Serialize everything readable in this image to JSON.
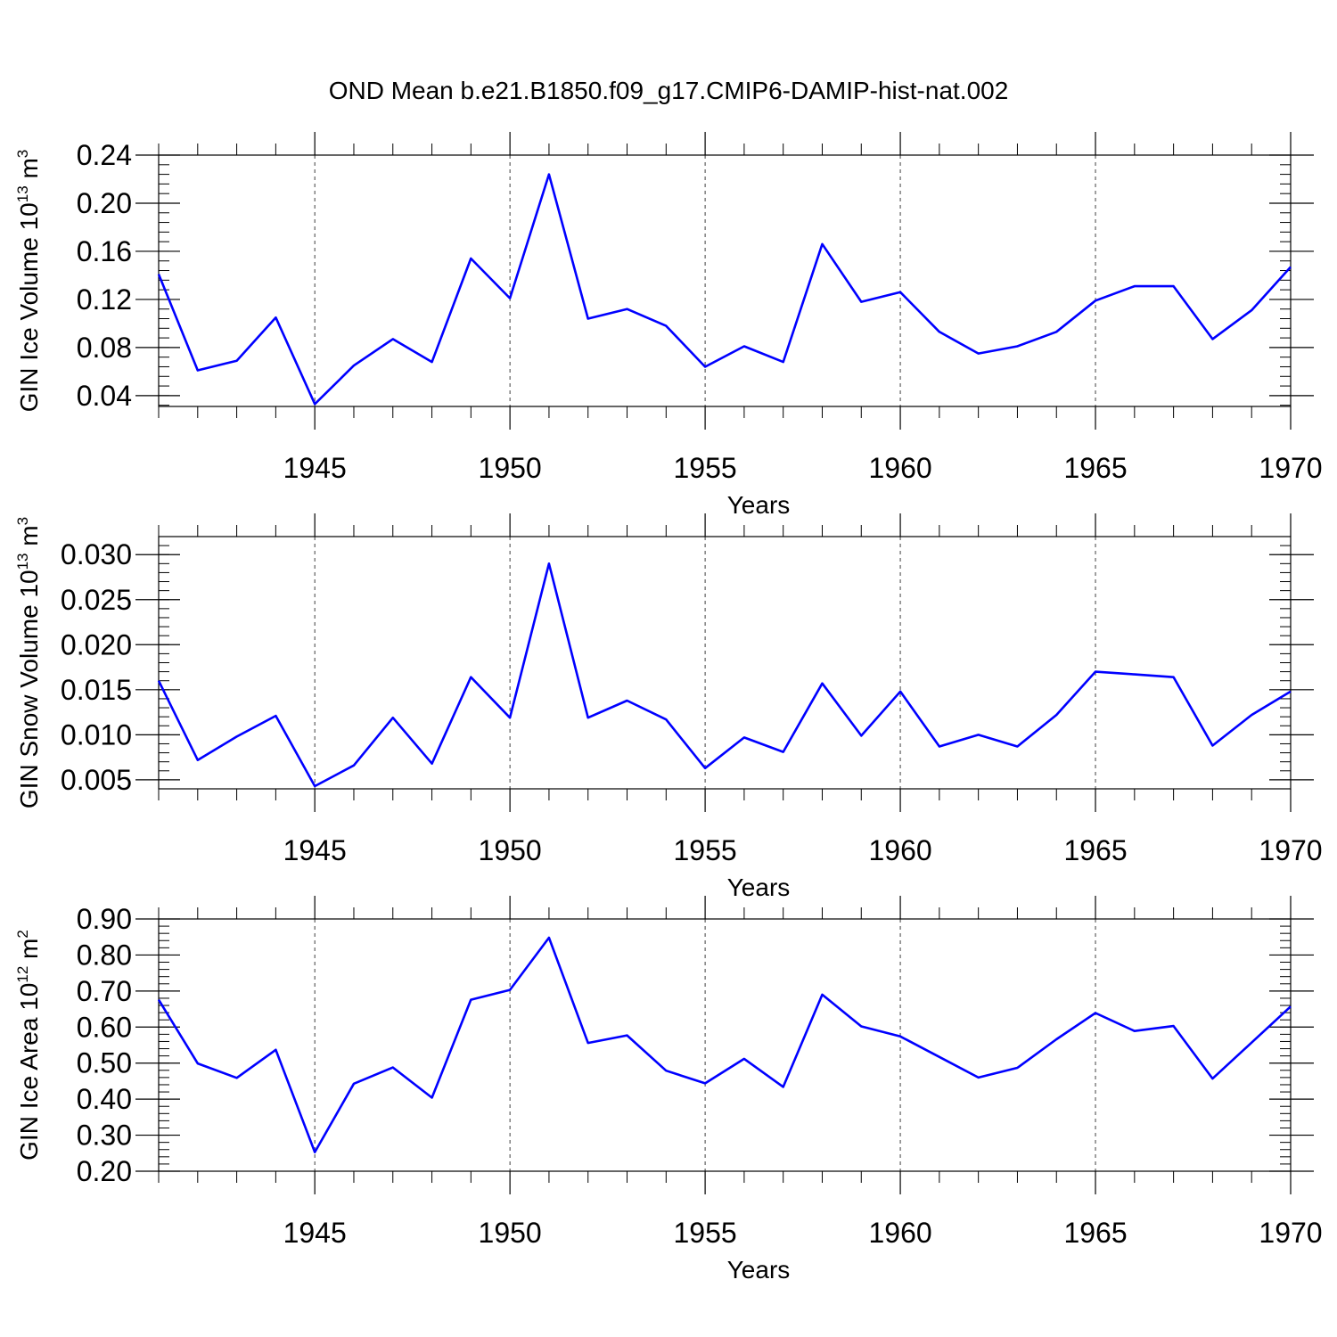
{
  "figure": {
    "title": "OND Mean b.e21.B1850.f09_g17.CMIP6-DAMIP-hist-nat.002",
    "line_color": "#0000ff"
  },
  "chart_data": [
    {
      "type": "line",
      "title": "",
      "xlabel": "Years",
      "ylabel": {
        "main": "GIN Ice Volume 10",
        "exp": "13",
        "unit": " m",
        "unit_exp": "3"
      },
      "xlim": [
        1941,
        1970
      ],
      "ylim": [
        0.031,
        0.24
      ],
      "yticks": [
        0.04,
        0.08,
        0.12,
        0.16,
        0.2,
        0.24
      ],
      "ytick_labels": [
        "0.04",
        "0.08",
        "0.12",
        "0.16",
        "0.20",
        "0.24"
      ],
      "yminor_step": 0.008,
      "xticks": [
        1945,
        1950,
        1955,
        1960,
        1965,
        1970
      ],
      "xtick_labels": [
        "1945",
        "1950",
        "1955",
        "1960",
        "1965",
        "1970"
      ],
      "grid": "vertical dashed at major x ticks",
      "x": [
        1941,
        1942,
        1943,
        1944,
        1945,
        1946,
        1947,
        1948,
        1949,
        1950,
        1951,
        1952,
        1953,
        1954,
        1955,
        1956,
        1957,
        1958,
        1959,
        1960,
        1961,
        1962,
        1963,
        1964,
        1965,
        1966,
        1967,
        1968,
        1969,
        1970
      ],
      "series": [
        {
          "name": "GIN Ice Volume",
          "values": [
            0.141,
            0.061,
            0.069,
            0.105,
            0.033,
            0.065,
            0.087,
            0.068,
            0.154,
            0.121,
            0.224,
            0.104,
            0.112,
            0.098,
            0.064,
            0.081,
            0.068,
            0.166,
            0.118,
            0.126,
            0.093,
            0.075,
            0.081,
            0.093,
            0.119,
            0.131,
            0.131,
            0.087,
            0.111,
            0.147
          ]
        }
      ]
    },
    {
      "type": "line",
      "title": "",
      "xlabel": "Years",
      "ylabel": {
        "main": "GIN Snow Volume 10",
        "exp": "13",
        "unit": " m",
        "unit_exp": "3"
      },
      "xlim": [
        1941,
        1970
      ],
      "ylim": [
        0.004,
        0.032
      ],
      "yticks": [
        0.005,
        0.01,
        0.015,
        0.02,
        0.025,
        0.03
      ],
      "ytick_labels": [
        "0.005",
        "0.010",
        "0.015",
        "0.020",
        "0.025",
        "0.030"
      ],
      "yminor_step": 0.001,
      "xticks": [
        1945,
        1950,
        1955,
        1960,
        1965,
        1970
      ],
      "xtick_labels": [
        "1945",
        "1950",
        "1955",
        "1960",
        "1965",
        "1970"
      ],
      "grid": "vertical dashed at major x ticks",
      "x": [
        1941,
        1942,
        1943,
        1944,
        1945,
        1946,
        1947,
        1948,
        1949,
        1950,
        1951,
        1952,
        1953,
        1954,
        1955,
        1956,
        1957,
        1958,
        1959,
        1960,
        1961,
        1962,
        1963,
        1964,
        1965,
        1966,
        1967,
        1968,
        1969,
        1970
      ],
      "series": [
        {
          "name": "GIN Snow Volume",
          "values": [
            0.016,
            0.0072,
            0.0098,
            0.0121,
            0.0043,
            0.0066,
            0.0119,
            0.0068,
            0.0164,
            0.0119,
            0.029,
            0.0119,
            0.0138,
            0.0117,
            0.0063,
            0.0097,
            0.0081,
            0.0157,
            0.0099,
            0.0148,
            0.0087,
            0.01,
            0.0087,
            0.0122,
            0.017,
            0.0167,
            0.0164,
            0.0088,
            0.0122,
            0.0148
          ]
        }
      ]
    },
    {
      "type": "line",
      "title": "",
      "xlabel": "Years",
      "ylabel": {
        "main": "GIN Ice Area 10",
        "exp": "12",
        "unit": " m",
        "unit_exp": "2"
      },
      "xlim": [
        1941,
        1970
      ],
      "ylim": [
        0.2,
        0.9
      ],
      "yticks": [
        0.2,
        0.3,
        0.4,
        0.5,
        0.6,
        0.7,
        0.8,
        0.9
      ],
      "ytick_labels": [
        "0.20",
        "0.30",
        "0.40",
        "0.50",
        "0.60",
        "0.70",
        "0.80",
        "0.90"
      ],
      "yminor_step": 0.02,
      "xticks": [
        1945,
        1950,
        1955,
        1960,
        1965,
        1970
      ],
      "xtick_labels": [
        "1945",
        "1950",
        "1955",
        "1960",
        "1965",
        "1970"
      ],
      "grid": "vertical dashed at major x ticks",
      "x": [
        1941,
        1942,
        1943,
        1944,
        1945,
        1946,
        1947,
        1948,
        1949,
        1950,
        1951,
        1952,
        1953,
        1954,
        1955,
        1956,
        1957,
        1958,
        1959,
        1960,
        1961,
        1962,
        1963,
        1964,
        1965,
        1966,
        1967,
        1968,
        1969,
        1970
      ],
      "series": [
        {
          "name": "GIN Ice Area",
          "values": [
            0.676,
            0.499,
            0.459,
            0.537,
            0.253,
            0.443,
            0.488,
            0.404,
            0.676,
            0.703,
            0.848,
            0.556,
            0.577,
            0.479,
            0.444,
            0.512,
            0.434,
            0.69,
            0.602,
            0.574,
            0.517,
            0.46,
            0.487,
            0.566,
            0.639,
            0.589,
            0.603,
            0.457,
            0.557,
            0.657
          ]
        }
      ]
    }
  ]
}
